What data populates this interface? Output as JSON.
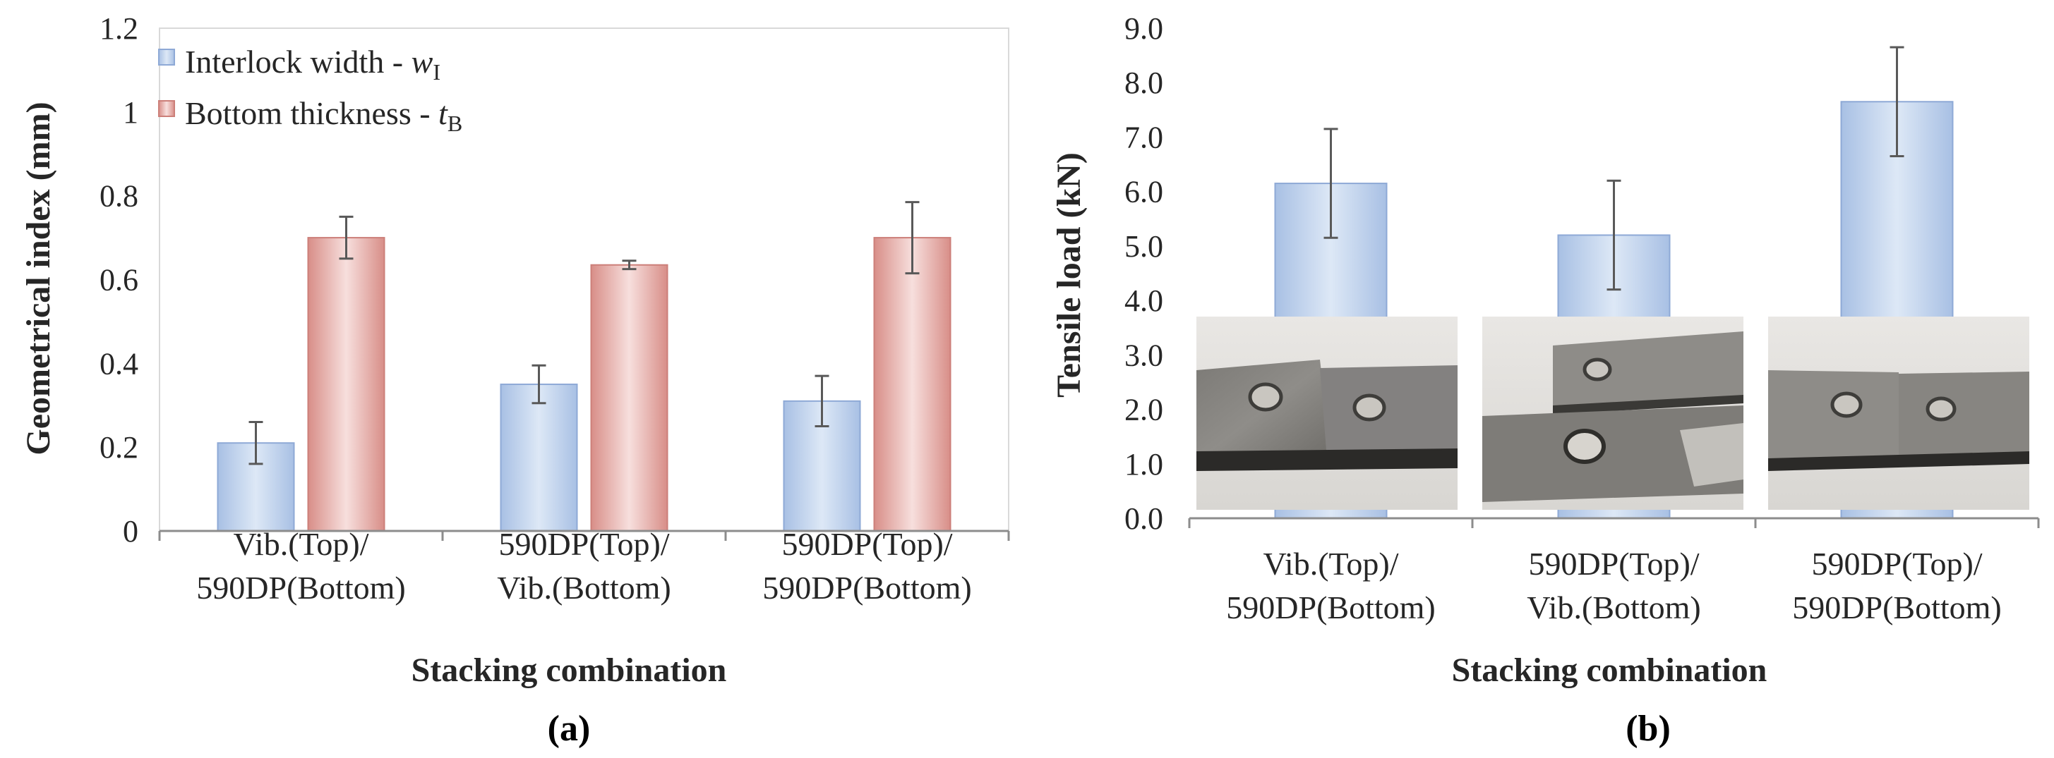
{
  "colors": {
    "blue_light": "#dbe6f5",
    "blue_dark": "#a6bfe3",
    "red_light": "#f6dedc",
    "red_dark": "#d98f89",
    "axis": "#8c8c8c",
    "error_bar": "#595959",
    "frame": "#d9d9d9"
  },
  "chart_data": [
    {
      "type": "bar",
      "panel": "(a)",
      "categories": [
        [
          "Vib.(Top)/",
          "590DP(Bottom)"
        ],
        [
          "590DP(Top)/",
          "Vib.(Bottom)"
        ],
        [
          "590DP(Top)/",
          "590DP(Bottom)"
        ]
      ],
      "series": [
        {
          "name": "Interlock width - ",
          "symbol": "w",
          "subscript": "I",
          "values": [
            0.21,
            0.35,
            0.31
          ],
          "errors": [
            0.05,
            0.045,
            0.06
          ],
          "color": "blue"
        },
        {
          "name": "Bottom thickness - ",
          "symbol": "t",
          "subscript": "B",
          "values": [
            0.7,
            0.635,
            0.7
          ],
          "errors": [
            0.05,
            0.01,
            0.085
          ],
          "color": "red"
        }
      ],
      "ylabel": "Geometrical index (mm)",
      "xlabel": "Stacking combination",
      "ylim": [
        0,
        1.2
      ],
      "yticks": [
        "0",
        "0.2",
        "0.4",
        "0.6",
        "0.8",
        "1",
        "1.2"
      ],
      "legend": "top-left"
    },
    {
      "type": "bar",
      "panel": "(b)",
      "categories": [
        [
          "Vib.(Top)/",
          "590DP(Bottom)"
        ],
        [
          "590DP(Top)/",
          "Vib.(Bottom)"
        ],
        [
          "590DP(Top)/",
          "590DP(Bottom)"
        ]
      ],
      "series": [
        {
          "name": "Tensile load",
          "values": [
            6.15,
            5.2,
            7.65
          ],
          "errors": [
            1.0,
            1.0,
            1.0
          ],
          "color": "blue"
        }
      ],
      "ylabel": "Tensile load (kN)",
      "xlabel": "Stacking combination",
      "ylim": [
        0,
        9
      ],
      "yticks": [
        "0.0",
        "1.0",
        "2.0",
        "3.0",
        "4.0",
        "5.0",
        "6.0",
        "7.0",
        "8.0",
        "9.0"
      ],
      "insets": [
        "fractured-specimen-photo-1",
        "fractured-specimen-photo-2",
        "fractured-specimen-photo-3"
      ]
    }
  ]
}
